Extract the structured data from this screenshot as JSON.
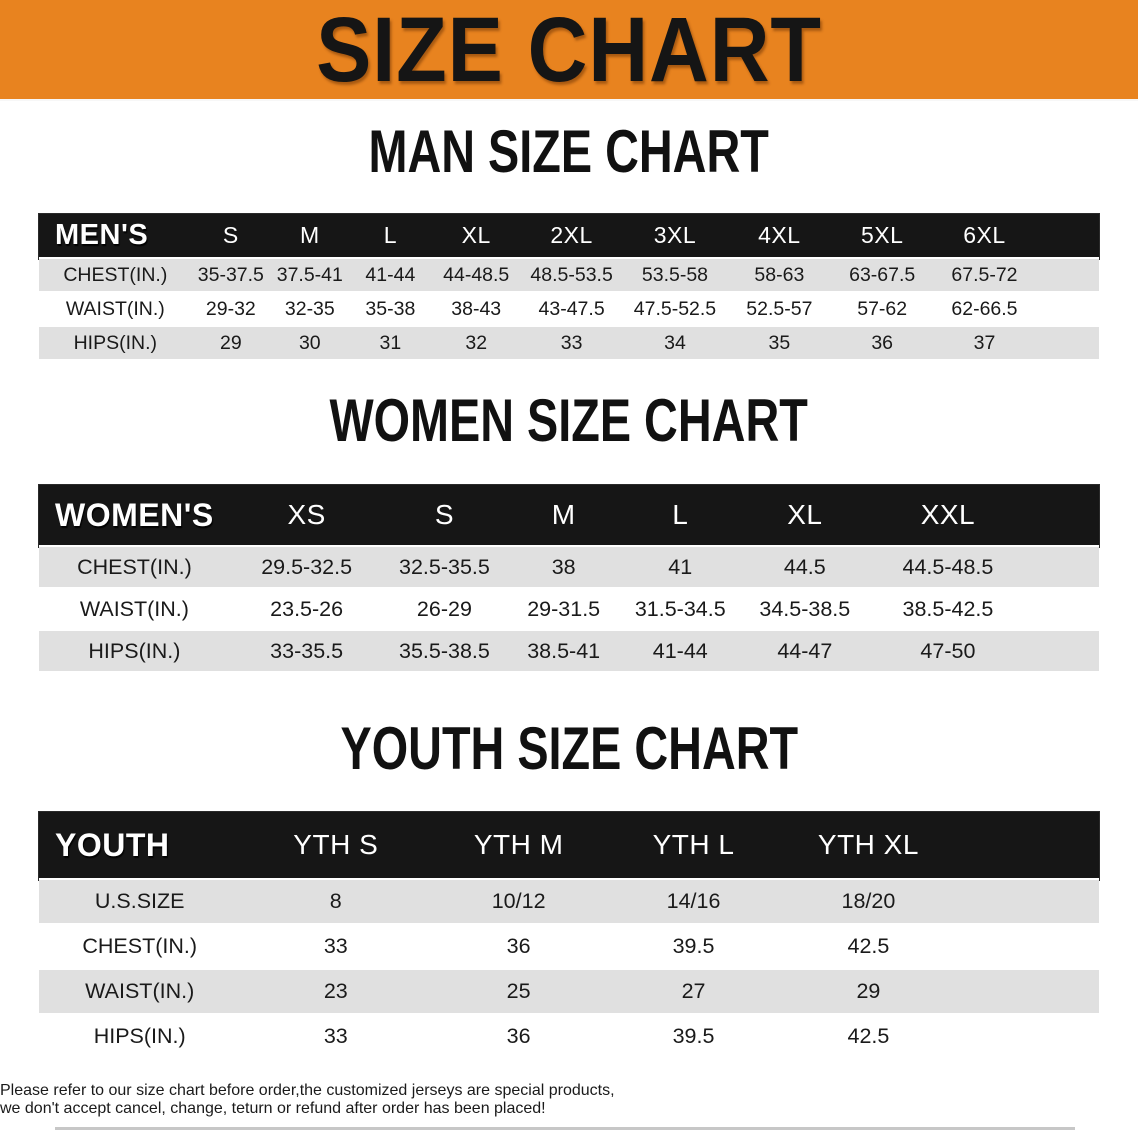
{
  "banner": {
    "title": "SIZE CHART"
  },
  "colors": {
    "banner_orange": "#e8831f",
    "header_black": "#161616",
    "stripe_gray": "#e0e0e0",
    "disclaimer_red": "#a32a22"
  },
  "tables": [
    {
      "heading": "MAN SIZE CHART",
      "header": {
        "label": "MEN'S",
        "sizes": [
          "S",
          "M",
          "L",
          "XL",
          "2XL",
          "3XL",
          "4XL",
          "5XL",
          "6XL"
        ]
      },
      "rows": [
        {
          "label": "CHEST(IN.)",
          "values": [
            "35-37.5",
            "37.5-41",
            "41-44",
            "44-48.5",
            "48.5-53.5",
            "53.5-58",
            "58-63",
            "63-67.5",
            "67.5-72"
          ]
        },
        {
          "label": "WAIST(IN.)",
          "values": [
            "29-32",
            "32-35",
            "35-38",
            "38-43",
            "43-47.5",
            "47.5-52.5",
            "52.5-57",
            "57-62",
            "62-66.5"
          ]
        },
        {
          "label": "HIPS(IN.)",
          "values": [
            "29",
            "30",
            "31",
            "32",
            "33",
            "34",
            "35",
            "36",
            "37"
          ]
        }
      ]
    },
    {
      "heading": "WOMEN SIZE CHART",
      "header": {
        "label": "WOMEN'S",
        "sizes": [
          "XS",
          "S",
          "M",
          "L",
          "XL",
          "XXL"
        ]
      },
      "rows": [
        {
          "label": "CHEST(IN.)",
          "values": [
            "29.5-32.5",
            "32.5-35.5",
            "38",
            "41",
            "44.5",
            "44.5-48.5"
          ]
        },
        {
          "label": "WAIST(IN.)",
          "values": [
            "23.5-26",
            "26-29",
            "29-31.5",
            "31.5-34.5",
            "34.5-38.5",
            "38.5-42.5"
          ]
        },
        {
          "label": "HIPS(IN.)",
          "values": [
            "33-35.5",
            "35.5-38.5",
            "38.5-41",
            "41-44",
            "44-47",
            "47-50"
          ]
        }
      ]
    },
    {
      "heading": "YOUTH SIZE CHART",
      "header": {
        "label": "YOUTH",
        "sizes": [
          "YTH S",
          "YTH M",
          "YTH L",
          "YTH XL"
        ]
      },
      "rows": [
        {
          "label": "U.S.SIZE",
          "values": [
            "8",
            "10/12",
            "14/16",
            "18/20"
          ]
        },
        {
          "label": "CHEST(IN.)",
          "values": [
            "33",
            "36",
            "39.5",
            "42.5"
          ]
        },
        {
          "label": "WAIST(IN.)",
          "values": [
            "23",
            "25",
            "27",
            "29"
          ]
        },
        {
          "label": "HIPS(IN.)",
          "values": [
            "33",
            "36",
            "39.5",
            "42.5"
          ]
        }
      ]
    }
  ],
  "disclaimer": {
    "line1": "Please refer to our size chart before order,the customized jerseys are special products,",
    "line2": "we don't accept cancel, change, teturn or refund after order has been placed!"
  }
}
